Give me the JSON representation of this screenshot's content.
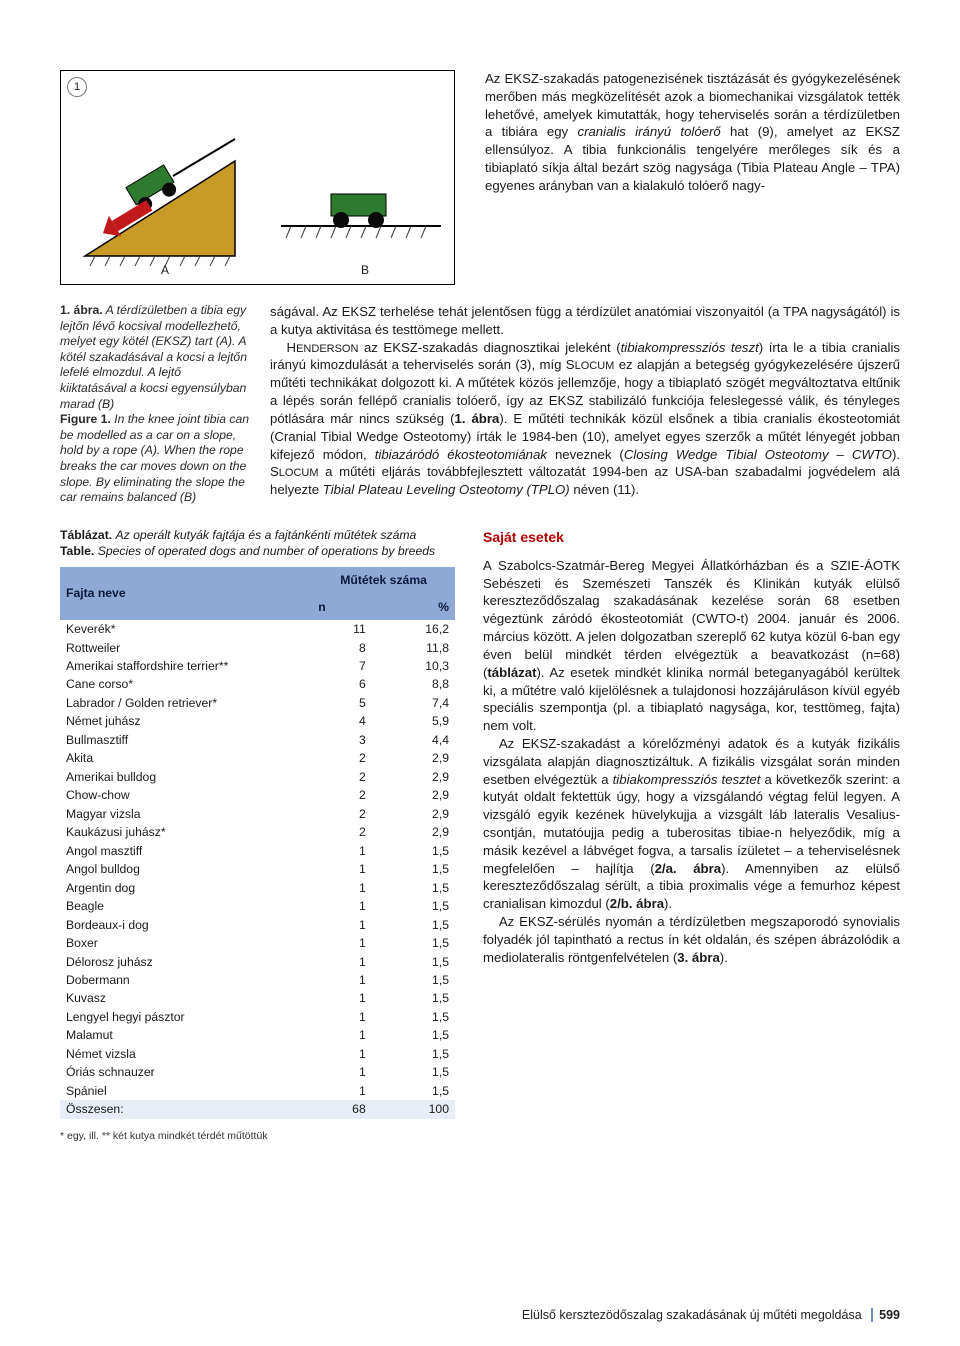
{
  "figure": {
    "num_badge": "1",
    "label_a": "A",
    "label_b": "B",
    "colors": {
      "slope_fill": "#c89a28",
      "slope_stroke": "#000000",
      "car_fill": "#2e7a2e",
      "wheel_fill": "#0a0a0a",
      "arrow_red": "#c21a1a",
      "grass_stroke": "#3b3b3b"
    }
  },
  "top_paragraph_html": "Az EKSZ-szakadás patogenezisének tisztázását és gyógykezelésének merőben más megközelítését azok a biomechanikai vizsgálatok tették lehetővé, amelyek kimutatták, hogy teherviselés során a térdízületben a tibiára egy <em>cranialis irányú tolóerő</em> hat (9), amelyet az EKSZ ellensúlyoz. A tibia funkcionális tengelyére merőleges sík és a tibiaplató síkja által bezárt szög nagysága (Tibia Plateau Angle – TPA) egyenes arányban van a kialakuló tolóerő nagy-",
  "caption": {
    "label_hu": "1. ábra.",
    "text_hu": "A térdízületben a tibia egy lejtőn lévő kocsival modellezhető, melyet egy kötél (EKSZ) tart (A). A kötél szakadásával a kocsi a lejtőn lefelé elmozdul. A lejtő kiiktatásával a kocsi egyensúlyban marad (B)",
    "label_en": "Figure 1.",
    "text_en": "In the knee joint tibia can be modelled as a car on a slope, hold by a rope (A). When the rope breaks the car moves down on the slope. By eliminating the slope the car remains balanced (B)"
  },
  "mid_paragraph_html": "ságával. Az EKSZ terhelése tehát jelentősen függ a térdízület anatómiai viszonyaitól (a TPA nagyságától) is a kutya aktivitása és testtömege mellett.<br>&nbsp;&nbsp;&nbsp;H<small>ENDERSON</small> az EKSZ-szakadás diagnosztikai jeleként (<em>tibiakompressziós teszt</em>) írta le a tibia cranialis irányú kimozdulását a teherviselés során (3), míg S<small>LOCUM</small> ez alapján a betegség gyógykezelésére újszerű műtéti technikákat dolgozott ki. A műtétek közös jellemzője, hogy a tibiaplató szögét megváltoztatva eltűnik a lépés során fellépő cranialis tolóerő, így az EKSZ stabilizáló funkciója feleslegessé válik, és tényleges pótlására már nincs szükség (<b>1. ábra</b>). E műtéti technikák közül elsőnek a tibia cranialis ékosteotomiát (Cranial Tibial Wedge Osteotomy) írták le 1984-ben (10), amelyet egyes szerzők a műtét lényegét jobban kifejező módon, <em>tibiazáródó ékosteotomiának</em> neveznek (<em>Closing Wedge Tibial Osteotomy – CWTO</em>). S<small>LOCUM</small> a műtéti eljárás továbbfejlesztett változatát 1994-ben az USA-ban szabadalmi jogvédelem alá helyezte <em>Tibial Plateau Leveling Osteotomy (TPLO)</em> néven (11).",
  "table_caption": {
    "label_hu": "Táblázat.",
    "text_hu": "Az operált kutyák fajtája és a fajtánkénti műtétek száma",
    "label_en": "Table.",
    "text_en": "Species of operated dogs and number of operations by breeds"
  },
  "table": {
    "header_bg": "#8fa9d6",
    "sum_bg": "#e8eef8",
    "col_breed": "Fajta neve",
    "col_ops_top": "Műtétek száma",
    "col_n": "n",
    "col_pct": "%",
    "rows": [
      {
        "b": "Keverék*",
        "n": "11",
        "p": "16,2"
      },
      {
        "b": "Rottweiler",
        "n": "8",
        "p": "11,8"
      },
      {
        "b": "Amerikai staffordshire terrier**",
        "n": "7",
        "p": "10,3"
      },
      {
        "b": "Cane corso*",
        "n": "6",
        "p": "8,8"
      },
      {
        "b": "Labrador / Golden retriever*",
        "n": "5",
        "p": "7,4"
      },
      {
        "b": "Német juhász",
        "n": "4",
        "p": "5,9"
      },
      {
        "b": "Bullmasztiff",
        "n": "3",
        "p": "4,4"
      },
      {
        "b": "Akita",
        "n": "2",
        "p": "2,9"
      },
      {
        "b": "Amerikai bulldog",
        "n": "2",
        "p": "2,9"
      },
      {
        "b": "Chow-chow",
        "n": "2",
        "p": "2,9"
      },
      {
        "b": "Magyar vizsla",
        "n": "2",
        "p": "2,9"
      },
      {
        "b": "Kaukázusi juhász*",
        "n": "2",
        "p": "2,9"
      },
      {
        "b": "Angol masztiff",
        "n": "1",
        "p": "1,5"
      },
      {
        "b": "Angol bulldog",
        "n": "1",
        "p": "1,5"
      },
      {
        "b": "Argentin dog",
        "n": "1",
        "p": "1,5"
      },
      {
        "b": "Beagle",
        "n": "1",
        "p": "1,5"
      },
      {
        "b": "Bordeaux-i dog",
        "n": "1",
        "p": "1,5"
      },
      {
        "b": "Boxer",
        "n": "1",
        "p": "1,5"
      },
      {
        "b": "Délorosz juhász",
        "n": "1",
        "p": "1,5"
      },
      {
        "b": "Dobermann",
        "n": "1",
        "p": "1,5"
      },
      {
        "b": "Kuvasz",
        "n": "1",
        "p": "1,5"
      },
      {
        "b": "Lengyel hegyi pásztor",
        "n": "1",
        "p": "1,5"
      },
      {
        "b": "Malamut",
        "n": "1",
        "p": "1,5"
      },
      {
        "b": "Német vizsla",
        "n": "1",
        "p": "1,5"
      },
      {
        "b": "Óriás schnauzer",
        "n": "1",
        "p": "1,5"
      },
      {
        "b": "Spániel",
        "n": "1",
        "p": "1,5"
      }
    ],
    "sum_label": "Összesen:",
    "sum_n": "68",
    "sum_pct": "100"
  },
  "table_footnote": "* egy, ill. ** két kutya mindkét térdét műtöttük",
  "sajat_heading": "Saját esetek",
  "right_paragraphs_html": [
    "A Szabolcs-Szatmár-Bereg Megyei Állatkórházban és a SZIE-ÁOTK Sebészeti és Szemészeti Tanszék és Klinikán kutyák elülső kereszteződőszalag szakadásának kezelése során 68 esetben végeztünk záródó ékosteotomiát (CWTO-t) 2004. január és 2006. március között. A jelen dolgozatban szereplő 62 kutya közül 6-ban egy éven belül mindkét térden elvégeztük a beavatkozást (n=68) (<b>táblázat</b>). Az esetek mindkét klinika normál beteganyagából kerültek ki, a műtétre való kijelölésnek a tulajdonosi hozzájáruláson kívül egyéb speciális szempontja (pl. a tibiaplató nagysága, kor, testtömeg, fajta) nem volt.",
    "Az EKSZ-szakadást a kórelőzményi adatok és a kutyák fizikális vizsgálata alapján diagnosztizáltuk. A fizikális vizsgálat során minden esetben elvégeztük a <em>tibiakompressziós tesztet</em> a következők szerint: a kutyát oldalt fektettük úgy, hogy a vizsgálandó végtag felül legyen. A vizsgáló egyik kezének hüvelykujja a vizsgált láb lateralis Vesalius-csontján, mutatóujja pedig a tuberositas tibiae-n helyeződik, míg a másik kezével a lábvéget fogva, a tarsalis ízületet – a teherviselésnek megfelelően – hajlítja (<b>2/a. ábra</b>). Amennyiben az elülső kereszteződőszalag sérült, a tibia proximalis vége a femurhoz képest cranialisan kimozdul (<b>2/b. ábra</b>).",
    "Az EKSZ-sérülés nyomán a térdízületben megszaporodó synovialis folyadék jól tapintható a rectus ín két oldalán, és szépen ábrázolódik a mediolateralis röntgenfelvételen (<b>3. ábra</b>)."
  ],
  "footer": {
    "title": "Elülső kersztezödőszalag szakadásának új műtéti megoldása",
    "page": "599"
  }
}
